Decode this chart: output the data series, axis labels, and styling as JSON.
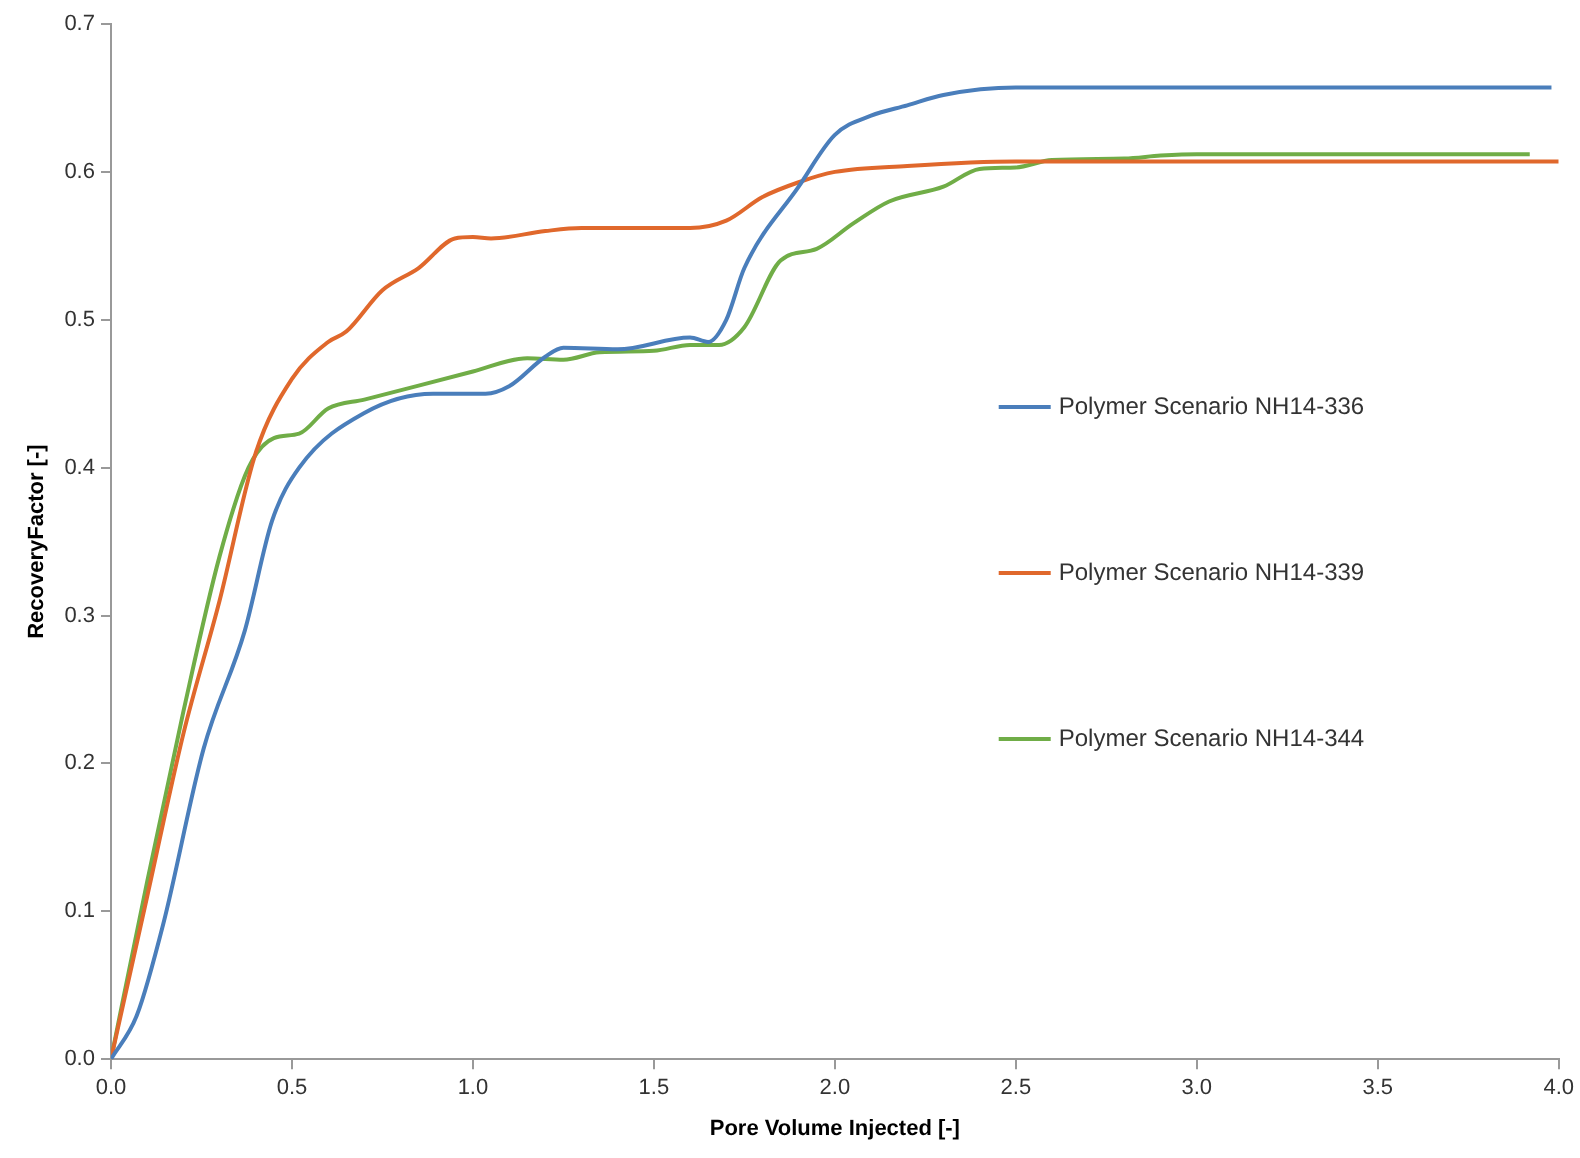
{
  "chart_data": {
    "type": "line",
    "xlabel": "Pore Volume Injected [-]",
    "ylabel": "RecoveryFactor [-]",
    "xlim": [
      0,
      4
    ],
    "xticks": [
      {
        "value": 0,
        "label": "0.0"
      },
      {
        "value": 0.5,
        "label": "0.5"
      },
      {
        "value": 1,
        "label": "1.0"
      },
      {
        "value": 1.5,
        "label": "1.5"
      },
      {
        "value": 2,
        "label": "2.0"
      },
      {
        "value": 2.5,
        "label": "2.5"
      },
      {
        "value": 3,
        "label": "3.0"
      },
      {
        "value": 3.5,
        "label": "3.5"
      },
      {
        "value": 4,
        "label": "4.0"
      }
    ],
    "ylim": [
      0,
      0.7
    ],
    "yticks": [
      {
        "value": 0,
        "label": "0.0"
      },
      0.1,
      0.2,
      0.3,
      0.4,
      0.5,
      0.6,
      0.7
    ],
    "grid": false,
    "legend": "right",
    "marker": "none",
    "line_style": "solid",
    "series": [
      {
        "name": "Polymer Scenario NH14-336",
        "color": "#4a7ebb",
        "x": [
          0,
          0.072,
          0.145,
          0.256,
          0.37,
          0.445,
          0.52,
          0.7,
          0.89,
          1.035,
          1.1,
          1.2,
          1.25,
          1.4,
          1.6,
          1.65,
          1.7,
          1.75,
          1.9,
          2.0,
          2.1,
          2.2,
          2.3,
          2.5,
          3.98
        ],
        "values": [
          0,
          0.03,
          0.092,
          0.21,
          0.29,
          0.364,
          0.4,
          0.437,
          0.45,
          0.45,
          0.455,
          0.475,
          0.481,
          0.48,
          0.488,
          0.485,
          0.5,
          0.535,
          0.59,
          0.625,
          0.638,
          0.645,
          0.652,
          0.657,
          0.657
        ]
      },
      {
        "name": "Polymer Scenario NH14-339",
        "color": "#e0682c",
        "x": [
          0,
          0.1,
          0.2,
          0.3,
          0.4,
          0.5,
          0.6,
          0.65,
          0.75,
          0.85,
          0.95,
          1.0,
          1.05,
          1.2,
          1.3,
          1.6,
          1.7,
          1.8,
          1.9,
          2.0,
          2.2,
          2.5,
          4.0
        ],
        "values": [
          0,
          0.11,
          0.22,
          0.31,
          0.41,
          0.46,
          0.485,
          0.492,
          0.52,
          0.535,
          0.555,
          0.556,
          0.555,
          0.56,
          0.562,
          0.562,
          0.567,
          0.583,
          0.593,
          0.6,
          0.604,
          0.607,
          0.607
        ]
      },
      {
        "name": "Polymer Scenario NH14-344",
        "color": "#70ad47",
        "x": [
          0,
          0.1,
          0.2,
          0.3,
          0.38,
          0.45,
          0.52,
          0.6,
          0.7,
          1.0,
          1.15,
          1.25,
          1.35,
          1.5,
          1.6,
          1.68,
          1.75,
          1.85,
          1.95,
          2.05,
          2.15,
          2.3,
          2.4,
          2.5,
          2.6,
          2.8,
          2.9,
          3.0,
          3.92
        ],
        "values": [
          0,
          0.12,
          0.235,
          0.34,
          0.4,
          0.42,
          0.423,
          0.44,
          0.446,
          0.465,
          0.474,
          0.473,
          0.478,
          0.479,
          0.483,
          0.483,
          0.495,
          0.54,
          0.548,
          0.565,
          0.58,
          0.59,
          0.602,
          0.603,
          0.608,
          0.609,
          0.611,
          0.612,
          0.612
        ]
      }
    ]
  }
}
